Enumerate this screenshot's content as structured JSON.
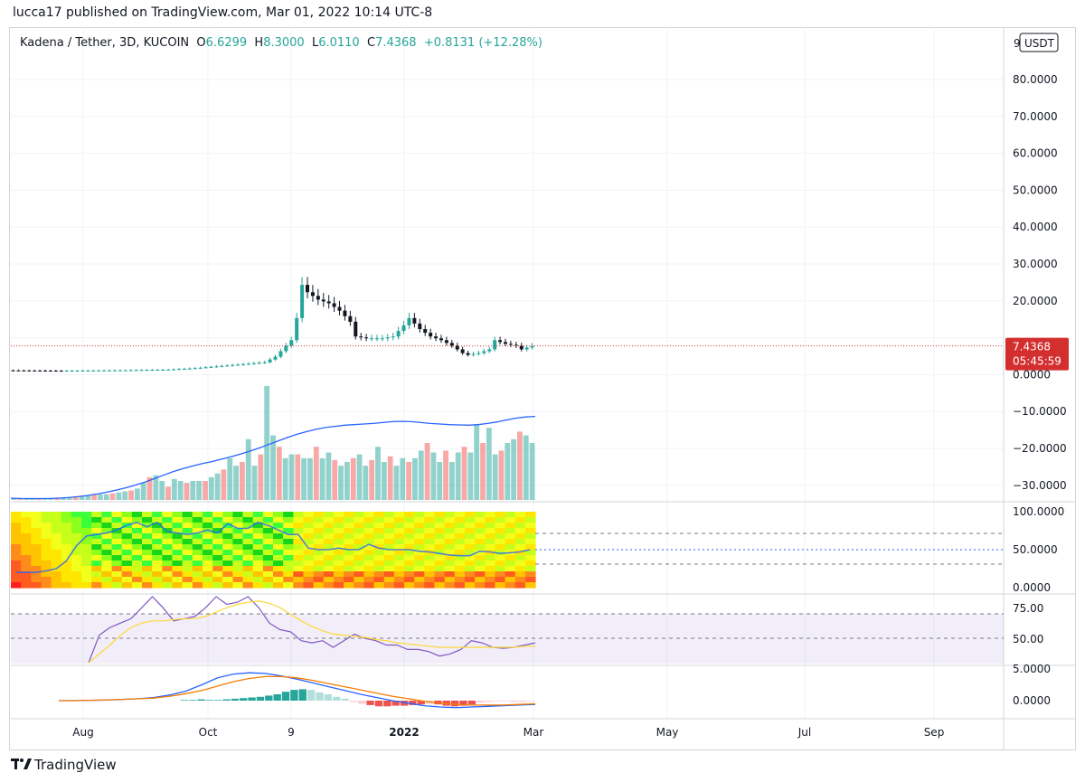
{
  "header": {
    "published": "lucca17 published on TradingView.com, Mar 01, 2022 10:14 UTC-8"
  },
  "legend": {
    "symbol": "Kadena / Tether, 3D, KUCOIN",
    "o_label": "O",
    "o_value": "6.6299",
    "h_label": "H",
    "h_value": "8.3000",
    "l_label": "L",
    "l_value": "6.0110",
    "c_label": "C",
    "c_value": "7.4368",
    "change": "+0.8131 (+12.28%)"
  },
  "currency": "USDT",
  "footer": {
    "brand": "TradingView"
  },
  "colors": {
    "up": "#26a69a",
    "down": "#131722",
    "last_price": "#d32f2f",
    "ma": "#2962ff",
    "rsi": "#7e57c2",
    "rsi_ma": "#fdd835",
    "macd_signal": "#f57c00"
  },
  "chart_data": [
    {
      "type": "candlestick",
      "price_axis_ticks": [
        "80.0000",
        "70.0000",
        "60.0000",
        "50.0000",
        "40.0000",
        "30.0000",
        "20.0000",
        "10.0000",
        "0.0000",
        "−10.0000",
        "−20.0000",
        "−30.0000"
      ],
      "price_axis_clipped_top": "9",
      "last_price": {
        "value": "7.4368",
        "countdown": "05:45:59"
      },
      "x_ticks": [
        "Aug",
        "Oct",
        "9",
        "2022",
        "Mar",
        "May",
        "Jul",
        "Sep"
      ],
      "close_points": [
        [
          0,
          0.8
        ],
        [
          10,
          0.7
        ],
        [
          20,
          0.8
        ],
        [
          30,
          1.0
        ],
        [
          35,
          1.4
        ],
        [
          40,
          2.0
        ],
        [
          45,
          2.6
        ],
        [
          48,
          3.0
        ],
        [
          50,
          4.5
        ],
        [
          52,
          7.5
        ],
        [
          53,
          9.0
        ],
        [
          54,
          15.0
        ],
        [
          55,
          24.0
        ],
        [
          56,
          22.0
        ],
        [
          58,
          20.0
        ],
        [
          60,
          19.0
        ],
        [
          62,
          17.0
        ],
        [
          64,
          14.0
        ],
        [
          65,
          10.0
        ],
        [
          67,
          9.5
        ],
        [
          70,
          9.5
        ],
        [
          72,
          10.0
        ],
        [
          74,
          13.0
        ],
        [
          75,
          15.0
        ],
        [
          77,
          12.0
        ],
        [
          79,
          10.0
        ],
        [
          81,
          9.0
        ],
        [
          83,
          7.5
        ],
        [
          85,
          5.5
        ],
        [
          86,
          5.0
        ],
        [
          88,
          5.5
        ],
        [
          90,
          6.5
        ],
        [
          91,
          9.0
        ],
        [
          93,
          8.0
        ],
        [
          95,
          7.5
        ],
        [
          96,
          6.5
        ],
        [
          97,
          7.0
        ],
        [
          98,
          7.4368
        ]
      ]
    },
    {
      "type": "bar",
      "name": "Volume",
      "values": [
        1,
        1,
        1,
        1,
        1,
        1,
        1,
        1,
        1,
        1,
        1.5,
        2,
        2.5,
        3,
        3,
        3,
        3.5,
        4,
        4.5,
        5,
        6,
        9,
        12,
        13,
        10,
        7,
        11,
        10,
        9,
        10,
        10,
        10,
        12,
        14,
        16,
        22,
        18,
        20,
        32,
        18,
        24,
        60,
        34,
        28,
        22,
        24,
        24,
        22,
        22,
        28,
        22,
        25,
        21,
        18,
        20,
        22,
        24,
        18,
        21,
        28,
        20,
        23,
        18,
        22,
        20,
        22,
        26,
        30,
        25,
        20,
        26,
        20,
        25,
        28,
        25,
        40,
        30,
        38,
        24,
        26,
        30,
        32,
        36,
        34,
        30
      ],
      "ma": [
        0.6,
        0.5,
        0.45,
        0.45,
        0.5,
        0.6,
        0.8,
        1.1,
        1.5,
        2,
        2.6,
        3.3,
        4.1,
        5,
        6,
        7.2,
        8.4,
        9.6,
        10.6,
        11.5,
        12.3,
        13,
        13.8,
        14.6,
        15.5,
        16.5,
        17.6,
        18.8,
        20,
        21.2,
        22.3,
        23.2,
        24,
        24.6,
        25,
        25.4,
        25.6,
        25.8,
        26,
        26.3,
        26.6,
        26.7,
        26.6,
        26.3,
        26,
        25.8,
        25.6,
        25.5,
        25.4,
        25.6,
        26,
        26.5,
        27.2,
        27.8,
        28.2,
        28.4
      ]
    },
    {
      "type": "heatmap",
      "y_ticks": [
        "100.0000",
        "50.0000",
        "0.0000"
      ],
      "line_values": [
        20,
        20,
        20,
        22,
        25,
        35,
        55,
        68,
        70,
        72,
        76,
        82,
        86,
        80,
        86,
        74,
        72,
        70,
        72,
        76,
        72,
        84,
        78,
        78,
        86,
        82,
        76,
        70,
        70,
        52,
        50,
        50,
        52,
        50,
        50,
        57,
        52,
        50,
        50,
        50,
        48,
        47,
        45,
        43,
        42,
        42,
        48,
        47,
        45,
        46,
        47,
        50
      ]
    },
    {
      "type": "line",
      "name": "RSI",
      "y_ticks": [
        "75.00",
        "50.00"
      ],
      "rsi_values": [
        30,
        55,
        62,
        66,
        70,
        80,
        92,
        80,
        68,
        70,
        72,
        80,
        90,
        83,
        85,
        90,
        80,
        66,
        60,
        58,
        50,
        48,
        50,
        44,
        50,
        56,
        52,
        50,
        46,
        46,
        42,
        42,
        40,
        36,
        38,
        42,
        50,
        48,
        44,
        43,
        44,
        46,
        48
      ],
      "rsi_ma_values": [
        30,
        38,
        46,
        55,
        62,
        66,
        68,
        68,
        69,
        70,
        70,
        72,
        76,
        80,
        83,
        85,
        86,
        84,
        80,
        74,
        68,
        63,
        59,
        56,
        55,
        54,
        53,
        51,
        50,
        48,
        47,
        46,
        45,
        44,
        44,
        44,
        44,
        44,
        44,
        44,
        44,
        45,
        45
      ]
    },
    {
      "type": "bar",
      "name": "MACD",
      "y_ticks": [
        "5.0000",
        "0.0000"
      ],
      "histogram": [
        0,
        0,
        0,
        0,
        0,
        0,
        0,
        0,
        0,
        0,
        0,
        0,
        0,
        0,
        0,
        0,
        0,
        0,
        0,
        0,
        0.1,
        0.1,
        0.2,
        0.1,
        0.1,
        0.2,
        0.3,
        0.4,
        0.5,
        0.6,
        0.8,
        1.0,
        1.4,
        1.7,
        1.8,
        1.7,
        1.3,
        1.0,
        0.6,
        0.3,
        -0.2,
        -0.5,
        -0.7,
        -0.9,
        -0.9,
        -0.8,
        -0.8,
        -0.7,
        -0.6,
        -0.5,
        -0.6,
        -0.8,
        -0.9,
        -0.8,
        -0.6,
        -0.3,
        -0.2,
        -0.1,
        -0.1,
        -0.2,
        -0.2,
        -0.1
      ],
      "macd_line": [
        0,
        0,
        0.05,
        0.1,
        0.2,
        0.3,
        0.5,
        0.9,
        1.5,
        2.5,
        3.6,
        4.2,
        4.4,
        4.3,
        3.9,
        3.4,
        2.8,
        2.2,
        1.6,
        1.0,
        0.5,
        0.0,
        -0.4,
        -0.8,
        -1.0,
        -1.1,
        -1.0,
        -0.9,
        -0.8,
        -0.7,
        -0.6
      ],
      "signal_line": [
        0,
        0,
        0.05,
        0.1,
        0.2,
        0.3,
        0.4,
        0.7,
        1.1,
        1.6,
        2.3,
        3.0,
        3.5,
        3.8,
        3.8,
        3.6,
        3.2,
        2.7,
        2.2,
        1.7,
        1.2,
        0.7,
        0.3,
        -0.1,
        -0.4,
        -0.6,
        -0.7,
        -0.7,
        -0.7,
        -0.6,
        -0.5
      ]
    }
  ]
}
